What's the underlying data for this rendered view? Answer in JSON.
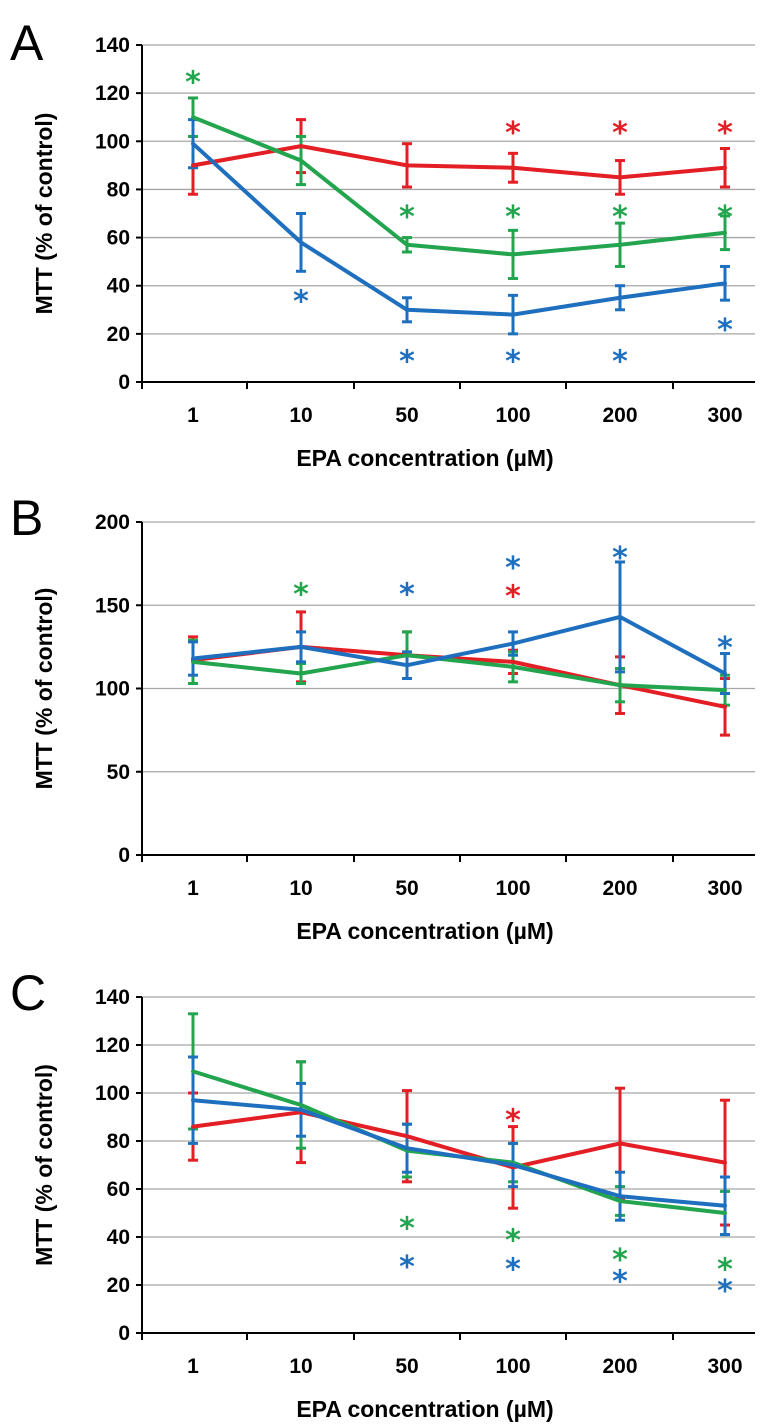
{
  "colors": {
    "red": "#e31e24",
    "green": "#23a44e",
    "blue": "#1f6fbf"
  },
  "chart_data": [
    {
      "panel": "A",
      "type": "line",
      "categories": [
        "1",
        "10",
        "50",
        "100",
        "200",
        "300"
      ],
      "xlabel": "EPA concentration (µM)",
      "ylabel": "MTT (% of control)",
      "ylim": [
        0,
        140
      ],
      "yticks": [
        0,
        20,
        40,
        60,
        80,
        100,
        120,
        140
      ],
      "grid": true,
      "series": [
        {
          "color": "red",
          "values": [
            90,
            98,
            90,
            89,
            85,
            89
          ],
          "errors": [
            12,
            11,
            9,
            6,
            7,
            8
          ]
        },
        {
          "color": "green",
          "values": [
            110,
            92,
            57,
            53,
            57,
            62
          ],
          "errors": [
            8,
            10,
            3,
            10,
            9,
            7
          ]
        },
        {
          "color": "blue",
          "values": [
            99,
            58,
            30,
            28,
            35,
            41
          ],
          "errors": [
            10,
            12,
            5,
            8,
            5,
            7
          ]
        }
      ],
      "annotations": [
        {
          "text": "*",
          "color": "green",
          "x": 0,
          "y": 127
        },
        {
          "text": "*",
          "color": "red",
          "x": 3,
          "y": 106
        },
        {
          "text": "*",
          "color": "red",
          "x": 4,
          "y": 106
        },
        {
          "text": "*",
          "color": "red",
          "x": 5,
          "y": 106
        },
        {
          "text": "*",
          "color": "green",
          "x": 2,
          "y": 71
        },
        {
          "text": "*",
          "color": "green",
          "x": 3,
          "y": 71
        },
        {
          "text": "*",
          "color": "green",
          "x": 4,
          "y": 71
        },
        {
          "text": "*",
          "color": "green",
          "x": 5.2,
          "y": 71
        },
        {
          "text": "*",
          "color": "blue",
          "x": 1,
          "y": 36
        },
        {
          "text": "*",
          "color": "blue",
          "x": 5,
          "y": 24
        },
        {
          "text": "*",
          "color": "blue",
          "x": 2,
          "y": 11
        },
        {
          "text": "*",
          "color": "blue",
          "x": 3,
          "y": 11
        },
        {
          "text": "*",
          "color": "blue",
          "x": 4,
          "y": 11
        }
      ]
    },
    {
      "panel": "B",
      "type": "line",
      "categories": [
        "1",
        "10",
        "50",
        "100",
        "200",
        "300"
      ],
      "xlabel": "EPA concentration (µM)",
      "ylabel": "MTT (% of control)",
      "ylim": [
        0,
        200
      ],
      "yticks": [
        0,
        50,
        100,
        150,
        200
      ],
      "grid": true,
      "series": [
        {
          "color": "red",
          "values": [
            117,
            125,
            120,
            116,
            102,
            89
          ],
          "errors": [
            14,
            21,
            14,
            7,
            17,
            17
          ]
        },
        {
          "color": "green",
          "values": [
            116,
            109,
            120,
            113,
            102,
            99
          ],
          "errors": [
            13,
            6,
            14,
            9,
            10,
            9
          ]
        },
        {
          "color": "blue",
          "values": [
            118,
            125,
            114,
            127,
            143,
            109
          ],
          "errors": [
            10,
            9,
            8,
            7,
            33,
            12
          ]
        }
      ],
      "annotations": [
        {
          "text": "*",
          "color": "green",
          "x": 1,
          "y": 160
        },
        {
          "text": "*",
          "color": "blue",
          "x": 2,
          "y": 160
        },
        {
          "text": "*",
          "color": "blue",
          "x": 3,
          "y": 176
        },
        {
          "text": "*",
          "color": "red",
          "x": 3,
          "y": 159
        },
        {
          "text": "*",
          "color": "blue",
          "x": 4,
          "y": 182
        },
        {
          "text": "*",
          "color": "blue",
          "x": 5,
          "y": 128
        }
      ]
    },
    {
      "panel": "C",
      "type": "line",
      "categories": [
        "1",
        "10",
        "50",
        "100",
        "200",
        "300"
      ],
      "xlabel": "EPA concentration (µM)",
      "ylabel": "MTT (% of control)",
      "ylim": [
        0,
        140
      ],
      "yticks": [
        0,
        20,
        40,
        60,
        80,
        100,
        120,
        140
      ],
      "grid": true,
      "series": [
        {
          "color": "red",
          "values": [
            86,
            92,
            82,
            69,
            79,
            71
          ],
          "errors": [
            14,
            21,
            19,
            17,
            23,
            26
          ]
        },
        {
          "color": "green",
          "values": [
            109,
            95,
            76,
            71,
            55,
            50
          ],
          "errors": [
            24,
            18,
            11,
            8,
            6,
            9
          ]
        },
        {
          "color": "blue",
          "values": [
            97,
            93,
            77,
            70,
            57,
            53
          ],
          "errors": [
            18,
            11,
            10,
            9,
            10,
            12
          ]
        }
      ],
      "annotations": [
        {
          "text": "*",
          "color": "red",
          "x": 3,
          "y": 91
        },
        {
          "text": "*",
          "color": "green",
          "x": 2,
          "y": 46
        },
        {
          "text": "*",
          "color": "blue",
          "x": 2,
          "y": 30
        },
        {
          "text": "*",
          "color": "green",
          "x": 3,
          "y": 41
        },
        {
          "text": "*",
          "color": "blue",
          "x": 3,
          "y": 29
        },
        {
          "text": "*",
          "color": "green",
          "x": 4,
          "y": 33
        },
        {
          "text": "*",
          "color": "blue",
          "x": 4,
          "y": 24
        },
        {
          "text": "*",
          "color": "green",
          "x": 5,
          "y": 29
        },
        {
          "text": "*",
          "color": "blue",
          "x": 5,
          "y": 20
        }
      ]
    }
  ]
}
